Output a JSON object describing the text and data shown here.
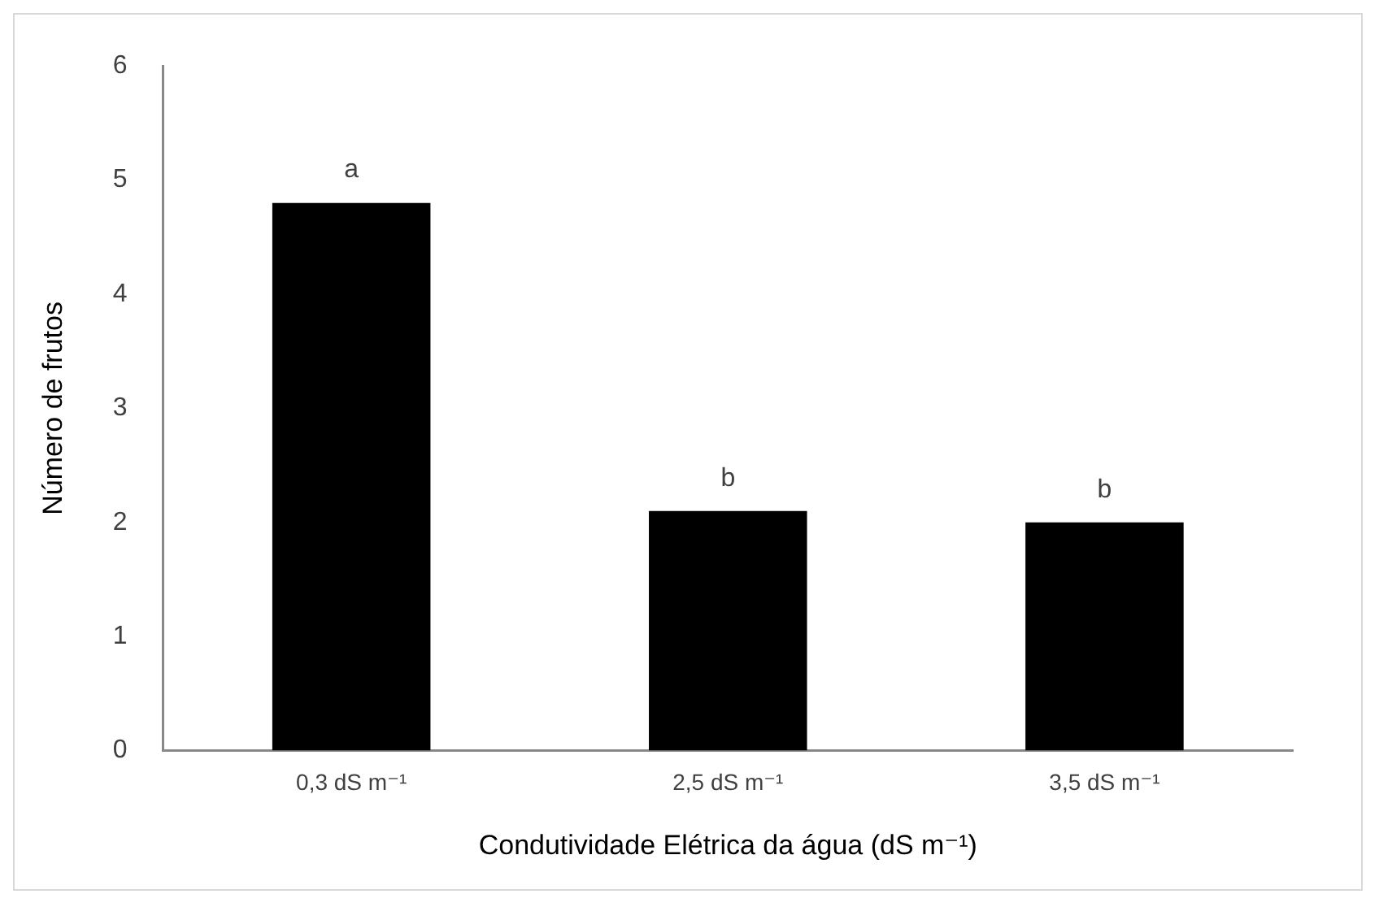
{
  "chart_data": {
    "type": "bar",
    "xlabel": "Condutividade Elétrica da água (dS m⁻¹)",
    "ylabel": "Número de frutos",
    "categories": [
      "0,3 dS m⁻¹",
      "2,5 dS m⁻¹",
      "3,5 dS m⁻¹"
    ],
    "values": [
      4.8,
      2.1,
      2.0
    ],
    "color": "#000000",
    "ylim": [
      0,
      6
    ],
    "yticks": [
      0,
      1,
      2,
      3,
      4,
      5,
      6
    ],
    "grid": false,
    "legend": false,
    "annotations": [
      {
        "text": "a",
        "x": "0,3 dS m⁻¹",
        "y": 4.8
      },
      {
        "text": "b",
        "x": "2,5 dS m⁻¹",
        "y": 2.1
      },
      {
        "text": "b",
        "x": "3,5 dS m⁻¹",
        "y": 2.0
      }
    ]
  }
}
